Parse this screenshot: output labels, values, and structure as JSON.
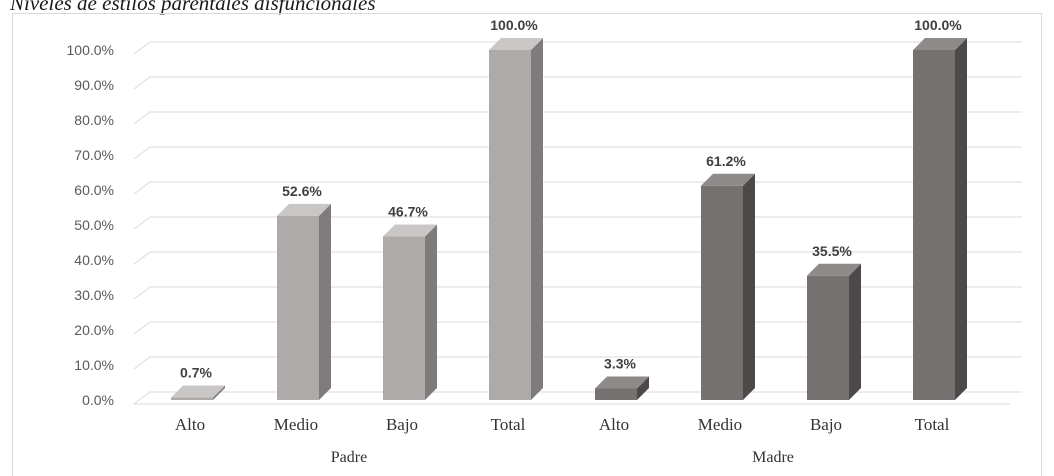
{
  "caption": "Niveles de estilos parentales disfuncionales",
  "colors": {
    "padre_front": "#aeaaaa",
    "padre_side": "#7f7b7b",
    "padre_top": "#c9c6c6",
    "madre_front": "#767171",
    "madre_side": "#4d4949",
    "madre_top": "#8f8a8a",
    "grid": "#d9d9d9"
  },
  "chart_data": {
    "type": "bar",
    "title": "",
    "xlabel": "",
    "ylabel": "",
    "ylim": [
      0,
      100
    ],
    "y_ticks": [
      "0.0%",
      "10.0%",
      "20.0%",
      "30.0%",
      "40.0%",
      "50.0%",
      "60.0%",
      "70.0%",
      "80.0%",
      "90.0%",
      "100.0%"
    ],
    "grid": true,
    "groups": [
      {
        "name": "Padre",
        "categories": [
          "Alto",
          "Medio",
          "Bajo",
          "Total"
        ],
        "values": [
          0.7,
          52.6,
          46.7,
          100.0
        ],
        "labels": [
          "0.7%",
          "52.6%",
          "46.7%",
          "100.0%"
        ]
      },
      {
        "name": "Madre",
        "categories": [
          "Alto",
          "Medio",
          "Bajo",
          "Total"
        ],
        "values": [
          3.3,
          61.2,
          35.5,
          100.0
        ],
        "labels": [
          "3.3%",
          "61.2%",
          "35.5%",
          "100.0%"
        ]
      }
    ]
  }
}
